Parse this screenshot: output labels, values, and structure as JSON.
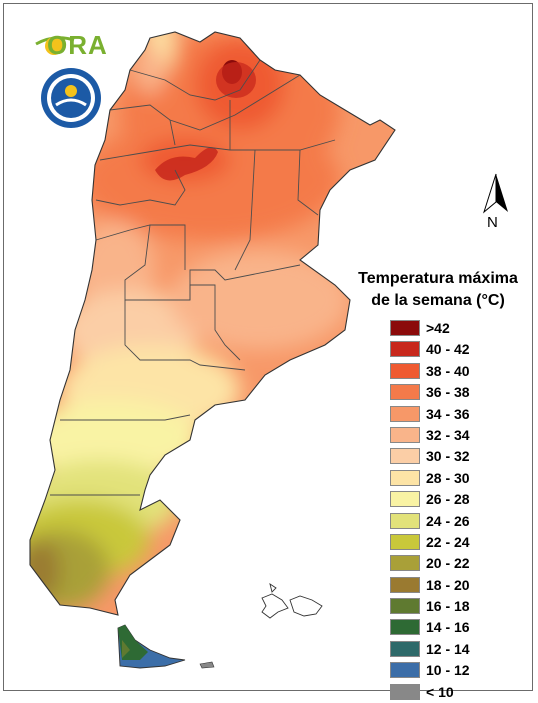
{
  "legend": {
    "title_line1": "Temperatura máxima",
    "title_line2": "de la semana (°C)",
    "classes": [
      {
        "label": ">42",
        "color": "#8b0a0a"
      },
      {
        "label": "40 - 42",
        "color": "#c8281c"
      },
      {
        "label": "38 - 40",
        "color": "#ef5a31"
      },
      {
        "label": "36 - 38",
        "color": "#f47a4a"
      },
      {
        "label": "34 - 36",
        "color": "#f79868"
      },
      {
        "label": "32 - 34",
        "color": "#f9b48a"
      },
      {
        "label": "30 - 32",
        "color": "#fbcea6"
      },
      {
        "label": "28 - 30",
        "color": "#fde4a6"
      },
      {
        "label": "26 - 28",
        "color": "#f9f3a4"
      },
      {
        "label": "24 - 26",
        "color": "#e2e27a"
      },
      {
        "label": "22 - 24",
        "color": "#c9c83a"
      },
      {
        "label": "20 - 22",
        "color": "#a9a038"
      },
      {
        "label": "18 - 20",
        "color": "#9a7a30"
      },
      {
        "label": "16 - 18",
        "color": "#5f7a30"
      },
      {
        "label": "14 - 16",
        "color": "#2e6a34"
      },
      {
        "label": "12 - 14",
        "color": "#2e6a6a"
      },
      {
        "label": "10 - 12",
        "color": "#3c6ea8"
      },
      {
        "label": "< 10",
        "color": "#888888"
      }
    ]
  },
  "north_arrow": {
    "label": "N"
  },
  "logos": {
    "ora": "ORA",
    "smn": "smn-logo"
  }
}
